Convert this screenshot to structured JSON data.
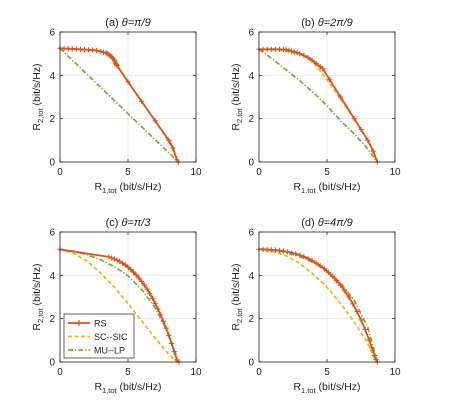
{
  "legend": {
    "placement": "lower-left of panel (c)",
    "entries": [
      {
        "label": "RS",
        "color": "#d95319",
        "style": "solid-plus"
      },
      {
        "label": "SC--SIC",
        "color": "#edb120",
        "style": "dashed"
      },
      {
        "label": "MU--LP",
        "color": "#77ac30",
        "style": "dashdot"
      }
    ]
  },
  "chart_data": [
    {
      "type": "line",
      "title_prefix": "(a) ",
      "title_math": "θ=π/9",
      "xlabel_main": "R",
      "xlabel_sub": "1,tot",
      "xlabel_rest": " (bit/s/Hz)",
      "ylabel_main": "R",
      "ylabel_sub": "2,tot",
      "ylabel_rest": " (bit/s/Hz)",
      "xlim": [
        0,
        10
      ],
      "ylim": [
        0,
        6
      ],
      "xticks": [
        "0",
        "5",
        "10"
      ],
      "yticks": [
        "0",
        "2",
        "4",
        "6"
      ],
      "grid": true,
      "series": [
        {
          "name": "RS",
          "x": [
            0,
            0.3,
            0.6,
            0.9,
            1.2,
            1.5,
            1.8,
            2.1,
            2.4,
            2.7,
            3.0,
            3.2,
            3.4,
            3.5,
            3.6,
            3.7,
            3.8,
            3.9,
            4.0,
            4.05,
            4.1,
            4.15,
            4.2,
            5.0,
            6.0,
            7.0,
            8.0,
            8.3,
            8.6,
            8.7
          ],
          "y": [
            5.25,
            5.24,
            5.23,
            5.22,
            5.21,
            5.2,
            5.19,
            5.18,
            5.17,
            5.15,
            5.1,
            5.07,
            5.03,
            5.0,
            4.96,
            4.9,
            4.84,
            4.78,
            4.7,
            4.62,
            4.55,
            4.5,
            4.45,
            3.7,
            2.8,
            1.9,
            1.0,
            0.65,
            0.1,
            0
          ]
        },
        {
          "name": "SC--SIC",
          "x": [
            0,
            1,
            2,
            3,
            3.4,
            3.8,
            4.2,
            5,
            6,
            7,
            8,
            8.7
          ],
          "y": [
            5.25,
            5.22,
            5.18,
            5.1,
            5.02,
            4.85,
            4.45,
            3.7,
            2.8,
            1.9,
            0.95,
            0
          ]
        },
        {
          "name": "MU--LP",
          "x": [
            0,
            8.7
          ],
          "y": [
            5.25,
            0
          ]
        }
      ]
    },
    {
      "type": "line",
      "title_prefix": "(b) ",
      "title_math": "θ=2π/9",
      "xlabel_main": "R",
      "xlabel_sub": "1,tot",
      "xlabel_rest": " (bit/s/Hz)",
      "ylabel_main": "R",
      "ylabel_sub": "2,tot",
      "ylabel_rest": " (bit/s/Hz)",
      "xlim": [
        0,
        10
      ],
      "ylim": [
        0,
        6
      ],
      "xticks": [
        "0",
        "5",
        "10"
      ],
      "yticks": [
        "0",
        "2",
        "4",
        "6"
      ],
      "grid": true,
      "series": [
        {
          "name": "RS",
          "x": [
            0,
            0.3,
            0.6,
            0.9,
            1.2,
            1.5,
            1.8,
            2.0,
            2.2,
            2.4,
            2.6,
            2.8,
            3.0,
            3.3,
            3.6,
            3.9,
            4.2,
            4.5,
            4.7,
            5.2,
            6.0,
            7.0,
            7.5,
            8.0,
            8.4,
            8.7
          ],
          "y": [
            5.2,
            5.2,
            5.2,
            5.2,
            5.2,
            5.2,
            5.19,
            5.18,
            5.16,
            5.12,
            5.08,
            5.05,
            5.0,
            4.92,
            4.82,
            4.7,
            4.55,
            4.4,
            4.3,
            3.8,
            3.0,
            2.0,
            1.5,
            1.0,
            0.5,
            0
          ]
        },
        {
          "name": "SC--SIC",
          "x": [
            0,
            1,
            2,
            3,
            3.5,
            4.0,
            4.5,
            5.0,
            6.0,
            7.0,
            8.0,
            8.7
          ],
          "y": [
            5.2,
            5.18,
            5.12,
            5.0,
            4.85,
            4.6,
            4.2,
            3.8,
            2.9,
            2.0,
            1.0,
            0
          ]
        },
        {
          "name": "MU--LP",
          "x": [
            0,
            1,
            2,
            3,
            4,
            5,
            6,
            7,
            8,
            8.7
          ],
          "y": [
            5.2,
            4.75,
            4.25,
            3.75,
            3.2,
            2.6,
            1.9,
            1.3,
            0.6,
            0
          ]
        }
      ]
    },
    {
      "type": "line",
      "title_prefix": "(c) ",
      "title_math": "θ=π/3",
      "xlabel_main": "R",
      "xlabel_sub": "1,tot",
      "xlabel_rest": " (bit/s/Hz)",
      "ylabel_main": "R",
      "ylabel_sub": "2,tot",
      "ylabel_rest": " (bit/s/Hz)",
      "xlim": [
        0,
        10
      ],
      "ylim": [
        0,
        6
      ],
      "xticks": [
        "0",
        "5",
        "10"
      ],
      "yticks": [
        "0",
        "2",
        "4",
        "6"
      ],
      "grid": true,
      "series": [
        {
          "name": "RS",
          "x": [
            0,
            3.6,
            3.8,
            4.0,
            4.2,
            4.4,
            4.6,
            4.8,
            5.0,
            5.2,
            5.4,
            5.6,
            5.8,
            6.0,
            6.2,
            6.4,
            6.6,
            6.8,
            7.0,
            7.2,
            7.4,
            7.6,
            7.8,
            8.0,
            8.2,
            8.4,
            8.6,
            8.75
          ],
          "y": [
            5.2,
            4.85,
            4.8,
            4.75,
            4.7,
            4.64,
            4.56,
            4.48,
            4.38,
            4.27,
            4.15,
            4.02,
            3.88,
            3.72,
            3.55,
            3.36,
            3.16,
            2.94,
            2.7,
            2.45,
            2.18,
            1.88,
            1.56,
            1.22,
            0.86,
            0.48,
            0.1,
            0
          ]
        },
        {
          "name": "SC--SIC",
          "x": [
            0,
            1,
            2,
            3,
            4,
            5,
            6,
            7,
            8,
            8.6
          ],
          "y": [
            5.2,
            5.02,
            4.65,
            4.1,
            3.45,
            2.7,
            1.9,
            1.1,
            0.35,
            0
          ]
        },
        {
          "name": "MU--LP",
          "x": [
            0,
            1,
            2,
            3,
            4,
            5,
            6,
            7,
            8,
            8.7
          ],
          "y": [
            5.2,
            5.1,
            4.95,
            4.72,
            4.4,
            3.98,
            3.35,
            2.5,
            1.3,
            0
          ]
        }
      ]
    },
    {
      "type": "line",
      "title_prefix": "(d) ",
      "title_math": "θ=4π/9",
      "xlabel_main": "R",
      "xlabel_sub": "1,tot",
      "xlabel_rest": " (bit/s/Hz)",
      "ylabel_main": "R",
      "ylabel_sub": "2,tot",
      "ylabel_rest": " (bit/s/Hz)",
      "xlim": [
        0,
        10
      ],
      "ylim": [
        0,
        6
      ],
      "xticks": [
        "0",
        "5",
        "10"
      ],
      "yticks": [
        "0",
        "2",
        "4",
        "6"
      ],
      "grid": true,
      "series": [
        {
          "name": "RS",
          "x": [
            0,
            0.3,
            0.6,
            0.9,
            1.2,
            1.5,
            1.8,
            2.1,
            2.4,
            2.7,
            3.0,
            3.3,
            3.6,
            3.9,
            4.2,
            4.5,
            4.8,
            5.1,
            5.4,
            5.7,
            6.0,
            6.3,
            6.6,
            6.9,
            7.2,
            7.5,
            7.8,
            8.1,
            8.3,
            8.5,
            8.6,
            8.7
          ],
          "y": [
            5.2,
            5.2,
            5.19,
            5.18,
            5.17,
            5.15,
            5.12,
            5.08,
            5.04,
            4.99,
            4.93,
            4.86,
            4.78,
            4.68,
            4.57,
            4.44,
            4.3,
            4.14,
            3.96,
            3.76,
            3.54,
            3.28,
            3.0,
            2.68,
            2.33,
            1.94,
            1.5,
            1.02,
            0.65,
            0.3,
            0.12,
            0
          ]
        },
        {
          "name": "SC--SIC",
          "x": [
            0,
            1,
            2,
            3,
            4,
            5,
            6,
            7,
            8,
            8.6
          ],
          "y": [
            5.2,
            5.1,
            4.9,
            4.55,
            4.05,
            3.45,
            2.7,
            1.85,
            0.85,
            0
          ]
        },
        {
          "name": "MU--LP",
          "x": [
            0,
            1,
            2,
            3,
            4,
            5,
            6,
            7,
            8,
            8.7
          ],
          "y": [
            5.2,
            5.17,
            5.05,
            4.87,
            4.6,
            4.2,
            3.65,
            2.85,
            1.6,
            0
          ]
        }
      ]
    }
  ]
}
